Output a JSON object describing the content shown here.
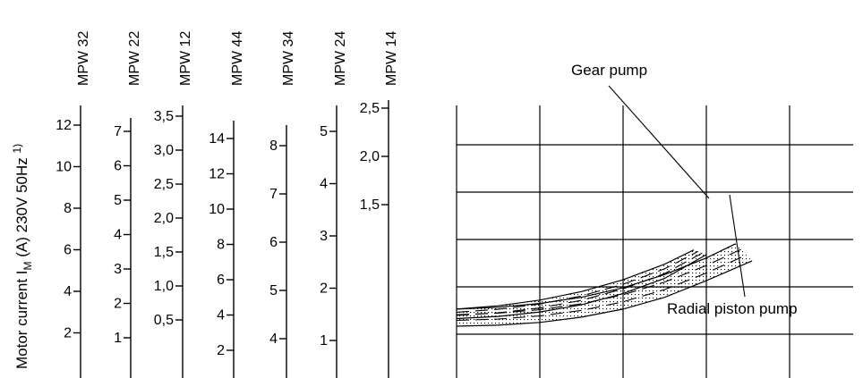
{
  "chart_data": {
    "type": "line",
    "ylabel": {
      "main": "Motor current  I",
      "subscript": "M",
      "rest": " (A) 230V 50Hz  ",
      "footnote": "1)"
    },
    "scales": [
      {
        "model": "MPW 32",
        "ticks": [
          "12",
          "10",
          "8",
          "6",
          "4",
          "2"
        ]
      },
      {
        "model": "MPW 22",
        "ticks": [
          "7",
          "6",
          "5",
          "4",
          "3",
          "2",
          "1"
        ]
      },
      {
        "model": "MPW 12",
        "ticks": [
          "3,5",
          "3,0",
          "2,5",
          "2,0",
          "1,5",
          "1,0",
          "0,5"
        ]
      },
      {
        "model": "MPW 44",
        "ticks": [
          "14",
          "12",
          "10",
          "8",
          "6",
          "4",
          "2"
        ]
      },
      {
        "model": "MPW 34",
        "ticks": [
          "8",
          "7",
          "6",
          "5",
          "4"
        ]
      },
      {
        "model": "MPW 24",
        "ticks": [
          "5",
          "4",
          "3",
          "2",
          "1"
        ]
      },
      {
        "model": "MPW 14",
        "ticks": [
          "2,5",
          "2,0",
          "1,5"
        ]
      }
    ],
    "grid": true,
    "series": [
      {
        "name": "Gear pump",
        "upper": [
          [
            0,
            0.53
          ],
          [
            0.5,
            0.6
          ],
          [
            1.0,
            0.72
          ],
          [
            1.5,
            0.9
          ],
          [
            2.0,
            1.15
          ],
          [
            2.5,
            1.48
          ],
          [
            2.85,
            1.78
          ]
        ],
        "lower": [
          [
            0,
            0.33
          ],
          [
            0.5,
            0.375
          ],
          [
            1.0,
            0.47
          ],
          [
            1.5,
            0.62
          ],
          [
            2.0,
            0.86
          ],
          [
            2.5,
            1.18
          ],
          [
            3.0,
            1.68
          ]
        ]
      },
      {
        "name": "Radial piston pump",
        "upper": [
          [
            0,
            0.53
          ],
          [
            0.5,
            0.57
          ],
          [
            1.0,
            0.65
          ],
          [
            1.5,
            0.78
          ],
          [
            2.0,
            0.98
          ],
          [
            2.5,
            1.26
          ],
          [
            3.0,
            1.61
          ],
          [
            3.35,
            1.91
          ]
        ],
        "lower": [
          [
            0,
            0.17
          ],
          [
            0.5,
            0.19
          ],
          [
            1.0,
            0.25
          ],
          [
            1.5,
            0.36
          ],
          [
            2.0,
            0.53
          ],
          [
            2.5,
            0.78
          ],
          [
            3.0,
            1.13
          ],
          [
            3.55,
            1.55
          ]
        ]
      }
    ],
    "annotations": [
      "Gear pump",
      "Radial piston pump"
    ]
  }
}
